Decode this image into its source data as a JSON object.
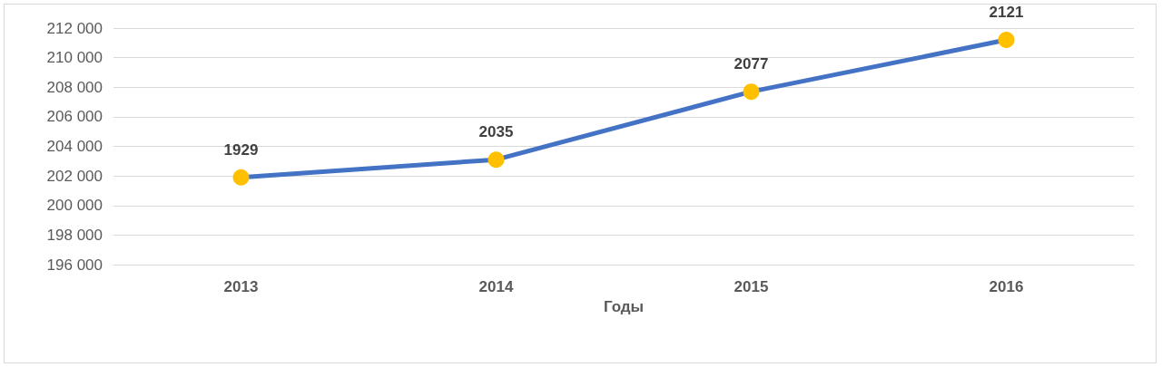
{
  "chart_data": {
    "type": "line",
    "xlabel": "Годы",
    "categories": [
      "2013",
      "2014",
      "2015",
      "2016"
    ],
    "series": [
      {
        "color": "#4472c4",
        "colors": [
          "#ffc000",
          "#ffc000",
          "#ffc000",
          "#ffc000"
        ],
        "values": [
          201900,
          203100,
          207700,
          211200
        ]
      }
    ],
    "annotations": [
      {
        "text": "1929",
        "x": "2013",
        "y": 201900
      },
      {
        "text": "2035",
        "x": "2014",
        "y": 203100
      },
      {
        "text": "2077",
        "x": "2015",
        "y": 207700
      },
      {
        "text": "2121",
        "x": "2016",
        "y": 211200
      }
    ],
    "ylim": [
      196000,
      212000
    ],
    "yticks": [
      196000,
      198000,
      200000,
      202000,
      204000,
      206000,
      208000,
      210000,
      212000
    ],
    "grid": "y",
    "marker": "circle"
  }
}
